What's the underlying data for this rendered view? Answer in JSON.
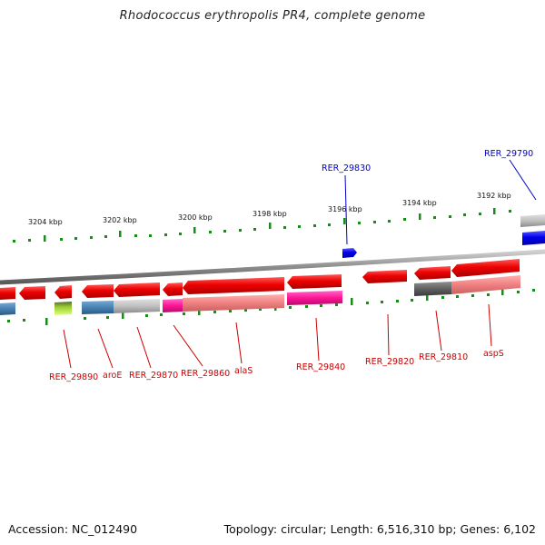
{
  "title": "Rhodococcus erythropolis PR4, complete genome",
  "footer": {
    "accession": "Accession: NC_012490",
    "summary": "Topology: circular; Length: 6,516,310 bp; Genes: 6,102"
  },
  "ruler_ticks": [
    "3204 kbp",
    "3202 kbp",
    "3200 kbp",
    "3198 kbp",
    "3196 kbp",
    "3194 kbp",
    "3192 kbp"
  ],
  "gene_labels": {
    "reverse": [
      "RER_29890",
      "aroE",
      "RER_29870",
      "RER_29860",
      "alaS",
      "RER_29840",
      "RER_29820",
      "RER_29810",
      "aspS"
    ],
    "forward": [
      "RER_29830",
      "RER_29790"
    ]
  },
  "colors": {
    "reverse_gene": "#e60000",
    "forward_gene": "#0000e6",
    "reverse_label": "#cc0000",
    "forward_label": "#0000cc",
    "tick": "#1a8a1a",
    "backbone": "#8c8c8c"
  }
}
